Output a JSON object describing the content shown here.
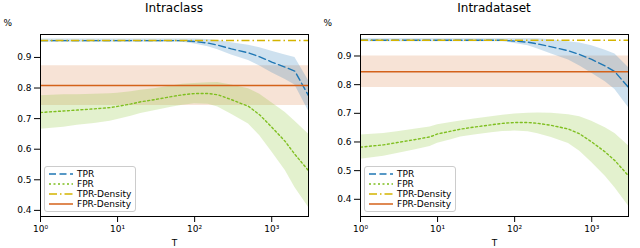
{
  "chart_data": [
    {
      "type": "line",
      "title": "Intraclass",
      "xlabel": "T",
      "ylabel": "%",
      "log": "x",
      "grid": false,
      "legend": "lower left",
      "x": [
        1,
        2,
        3,
        5,
        8,
        10,
        15,
        20,
        30,
        50,
        70,
        100,
        150,
        200,
        300,
        500,
        700,
        1000,
        1500,
        2000,
        3000
      ],
      "xlim": [
        1,
        3000
      ],
      "xticks": [
        {
          "value": 1,
          "label": "10⁰"
        },
        {
          "value": 10,
          "label": "10¹"
        },
        {
          "value": 100,
          "label": "10²"
        },
        {
          "value": 1000,
          "label": "10³"
        }
      ],
      "ylim": [
        0.38,
        0.975
      ],
      "yticks": [
        0.4,
        0.5,
        0.6,
        0.7,
        0.8,
        0.9
      ],
      "series": [
        {
          "name": "TPR",
          "color": "#1f77b4",
          "line_style": "dashed",
          "values": [
            0.955,
            0.955,
            0.955,
            0.955,
            0.955,
            0.955,
            0.955,
            0.955,
            0.955,
            0.955,
            0.955,
            0.952,
            0.947,
            0.94,
            0.928,
            0.915,
            0.902,
            0.885,
            0.868,
            0.855,
            0.775
          ],
          "std": [
            0.005,
            0.005,
            0.005,
            0.005,
            0.005,
            0.005,
            0.005,
            0.005,
            0.005,
            0.005,
            0.005,
            0.008,
            0.012,
            0.015,
            0.02,
            0.025,
            0.03,
            0.035,
            0.04,
            0.045,
            0.05
          ]
        },
        {
          "name": "FPR",
          "color": "#7fbf20",
          "line_style": "dotted",
          "values": [
            0.72,
            0.725,
            0.728,
            0.732,
            0.736,
            0.74,
            0.748,
            0.755,
            0.762,
            0.772,
            0.778,
            0.782,
            0.782,
            0.778,
            0.762,
            0.74,
            0.712,
            0.672,
            0.625,
            0.583,
            0.53
          ],
          "std": [
            0.055,
            0.053,
            0.05,
            0.048,
            0.045,
            0.043,
            0.04,
            0.038,
            0.036,
            0.035,
            0.034,
            0.033,
            0.035,
            0.04,
            0.048,
            0.058,
            0.068,
            0.08,
            0.095,
            0.108,
            0.12
          ]
        },
        {
          "name": "TPR-Density",
          "type": "hline",
          "color": "#d4b400",
          "line_style": "dashdot",
          "value": 0.955
        },
        {
          "name": "FPR-Density",
          "type": "hline",
          "color": "#d4621a",
          "line_style": "solid",
          "value": 0.808,
          "std": 0.065
        }
      ]
    },
    {
      "type": "line",
      "title": "Intradataset",
      "xlabel": "T",
      "ylabel": "%",
      "log": "x",
      "grid": false,
      "legend": "lower left",
      "x": [
        1,
        2,
        3,
        5,
        8,
        10,
        15,
        20,
        30,
        50,
        70,
        100,
        150,
        200,
        300,
        500,
        700,
        1000,
        1500,
        2000,
        3000
      ],
      "xlim": [
        1,
        3000
      ],
      "xticks": [
        {
          "value": 1,
          "label": "10⁰"
        },
        {
          "value": 10,
          "label": "10¹"
        },
        {
          "value": 100,
          "label": "10²"
        },
        {
          "value": 1000,
          "label": "10³"
        }
      ],
      "ylim": [
        0.34,
        0.975
      ],
      "yticks": [
        0.4,
        0.5,
        0.6,
        0.7,
        0.8,
        0.9
      ],
      "series": [
        {
          "name": "TPR",
          "color": "#1f77b4",
          "line_style": "dashed",
          "values": [
            0.955,
            0.955,
            0.955,
            0.955,
            0.955,
            0.955,
            0.955,
            0.955,
            0.955,
            0.955,
            0.955,
            0.952,
            0.948,
            0.942,
            0.932,
            0.918,
            0.905,
            0.888,
            0.865,
            0.845,
            0.79
          ],
          "std": [
            0.005,
            0.005,
            0.005,
            0.005,
            0.005,
            0.005,
            0.005,
            0.005,
            0.005,
            0.005,
            0.005,
            0.008,
            0.012,
            0.018,
            0.025,
            0.032,
            0.04,
            0.048,
            0.055,
            0.062,
            0.07
          ]
        },
        {
          "name": "FPR",
          "color": "#7fbf20",
          "line_style": "dotted",
          "values": [
            0.582,
            0.59,
            0.598,
            0.608,
            0.618,
            0.628,
            0.638,
            0.645,
            0.652,
            0.66,
            0.665,
            0.668,
            0.668,
            0.665,
            0.658,
            0.645,
            0.628,
            0.6,
            0.565,
            0.535,
            0.482
          ],
          "std": [
            0.042,
            0.04,
            0.038,
            0.036,
            0.034,
            0.032,
            0.03,
            0.028,
            0.028,
            0.028,
            0.028,
            0.03,
            0.032,
            0.036,
            0.042,
            0.05,
            0.06,
            0.072,
            0.085,
            0.095,
            0.105
          ]
        },
        {
          "name": "TPR-Density",
          "type": "hline",
          "color": "#d4b400",
          "line_style": "dashdot",
          "value": 0.955
        },
        {
          "name": "FPR-Density",
          "type": "hline",
          "color": "#d4621a",
          "line_style": "solid",
          "value": 0.845,
          "std": 0.055
        }
      ]
    }
  ]
}
